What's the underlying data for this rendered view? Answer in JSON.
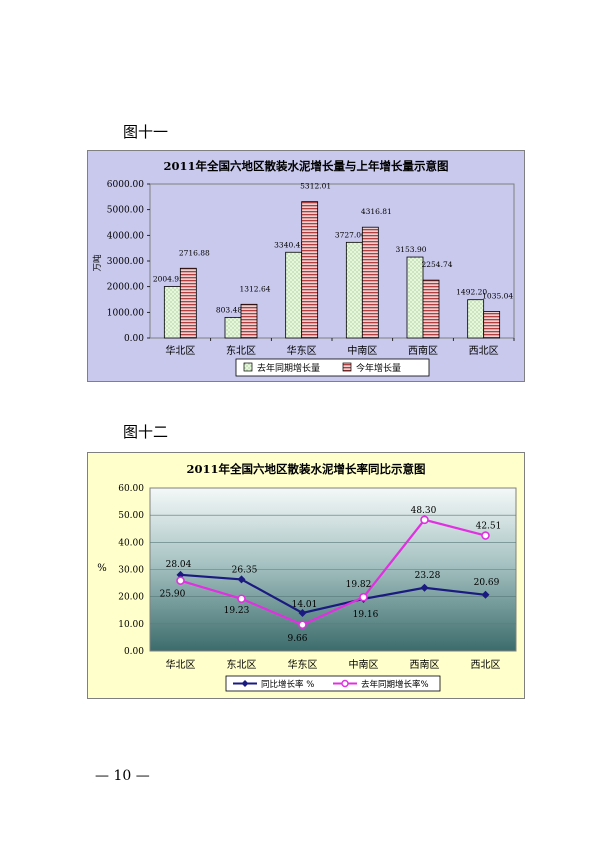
{
  "figures": {
    "fig1_label": "图十一",
    "fig2_label": "图十二"
  },
  "page_number": "— 10 —",
  "chart_data": [
    {
      "type": "bar",
      "title": "2011年全国六地区散装水泥增长量与上年增长量示意图",
      "xlabel": "",
      "ylabel": "万吨",
      "categories": [
        "华北区",
        "东北区",
        "华东区",
        "中南区",
        "西南区",
        "西北区"
      ],
      "ylim": [
        0,
        6000
      ],
      "yticks": [
        "0.00",
        "1000.00",
        "2000.00",
        "3000.00",
        "4000.00",
        "5000.00",
        "6000.00"
      ],
      "legend_position": "bottom",
      "grid": false,
      "series": [
        {
          "name": "去年同期增长量",
          "values": [
            2004.95,
            803.48,
            3340.45,
            3727.0,
            3153.9,
            1492.2
          ],
          "labels": [
            "2004.95",
            "803.48",
            "3340.45",
            "3727.00",
            "3153.90",
            "1492.20"
          ],
          "color": "#e6f5d8"
        },
        {
          "name": "今年增长量",
          "values": [
            2716.88,
            1312.64,
            5312.01,
            4316.81,
            2254.74,
            1035.04
          ],
          "labels": [
            "2716.88",
            "1312.64",
            "5312.01",
            "4316.81",
            "2254.74",
            "1035.04"
          ],
          "color": "#d8a0a0"
        }
      ]
    },
    {
      "type": "line",
      "title": "2011年全国六地区散装水泥增长率同比示意图",
      "xlabel": "",
      "ylabel": "%",
      "categories": [
        "华北区",
        "东北区",
        "华东区",
        "中南区",
        "西南区",
        "西北区"
      ],
      "ylim": [
        0,
        60
      ],
      "yticks": [
        "0.00",
        "10.00",
        "20.00",
        "30.00",
        "40.00",
        "50.00",
        "60.00"
      ],
      "legend_position": "bottom",
      "grid": true,
      "series": [
        {
          "name": "同比增长率 %",
          "values": [
            28.04,
            26.35,
            14.01,
            19.16,
            23.28,
            20.69
          ],
          "labels": [
            "28.04",
            "26.35",
            "14.01",
            "19.16",
            "23.28",
            "20.69"
          ],
          "color": "#1a1a80"
        },
        {
          "name": "去年同期增长率%",
          "values": [
            25.9,
            19.23,
            9.66,
            19.82,
            48.3,
            42.51
          ],
          "labels": [
            "25.90",
            "19.23",
            "9.66",
            "19.82",
            "48.30",
            "42.51"
          ],
          "color": "#e030e0"
        }
      ]
    }
  ]
}
